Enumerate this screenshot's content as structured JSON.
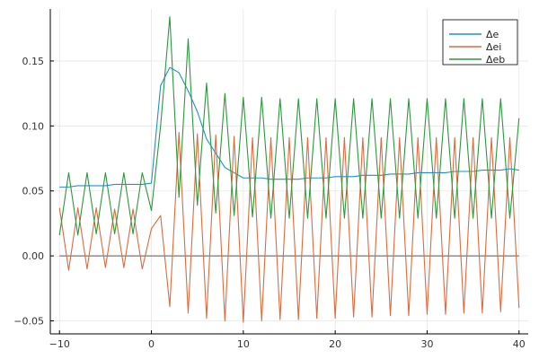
{
  "chart_data": {
    "type": "line",
    "title": "",
    "xlabel": "",
    "ylabel": "",
    "xlim": [
      -11,
      41
    ],
    "ylim": [
      -0.06,
      0.19
    ],
    "grid": true,
    "legend_position": "top-right",
    "x_ticks": [
      -10,
      0,
      10,
      20,
      30,
      40
    ],
    "x_tick_labels": [
      "−10",
      "0",
      "10",
      "20",
      "30",
      "40"
    ],
    "y_ticks": [
      -0.05,
      0.0,
      0.05,
      0.1,
      0.15
    ],
    "y_tick_labels": [
      "−0.05",
      "0.00",
      "0.05",
      "0.10",
      "0.15"
    ],
    "zero_line": 0,
    "x": [
      -10,
      -9,
      -8,
      -7,
      -6,
      -5,
      -4,
      -3,
      -2,
      -1,
      0,
      1,
      2,
      3,
      4,
      5,
      6,
      7,
      8,
      9,
      10,
      11,
      12,
      13,
      14,
      15,
      16,
      17,
      18,
      19,
      20,
      21,
      22,
      23,
      24,
      25,
      26,
      27,
      28,
      29,
      30,
      31,
      32,
      33,
      34,
      35,
      36,
      37,
      38,
      39,
      40
    ],
    "series": [
      {
        "name": "Δe",
        "color": "#1f8fd8",
        "values": [
          0.053,
          0.053,
          0.054,
          0.054,
          0.054,
          0.054,
          0.055,
          0.055,
          0.055,
          0.055,
          0.056,
          0.131,
          0.145,
          0.141,
          0.127,
          0.111,
          0.09,
          0.079,
          0.068,
          0.064,
          0.06,
          0.06,
          0.06,
          0.059,
          0.059,
          0.059,
          0.059,
          0.06,
          0.06,
          0.06,
          0.061,
          0.061,
          0.061,
          0.062,
          0.062,
          0.062,
          0.063,
          0.063,
          0.063,
          0.064,
          0.064,
          0.064,
          0.064,
          0.065,
          0.065,
          0.065,
          0.066,
          0.066,
          0.066,
          0.067,
          0.066
        ]
      },
      {
        "name": "Δei",
        "color": "#e06a3c",
        "values": [
          0.037,
          -0.011,
          0.037,
          -0.01,
          0.037,
          -0.009,
          0.036,
          -0.009,
          0.036,
          -0.01,
          0.021,
          0.031,
          -0.039,
          0.095,
          -0.044,
          0.094,
          -0.048,
          0.093,
          -0.05,
          0.092,
          -0.051,
          0.091,
          -0.05,
          0.091,
          -0.049,
          0.091,
          -0.049,
          0.091,
          -0.048,
          0.091,
          -0.048,
          0.091,
          -0.047,
          0.091,
          -0.047,
          0.091,
          -0.046,
          0.091,
          -0.046,
          0.091,
          -0.045,
          0.091,
          -0.045,
          0.091,
          -0.044,
          0.091,
          -0.044,
          0.091,
          -0.043,
          0.091,
          -0.04
        ]
      },
      {
        "name": "Δeb",
        "color": "#2a9a3a",
        "values": [
          0.016,
          0.064,
          0.016,
          0.064,
          0.017,
          0.064,
          0.017,
          0.064,
          0.017,
          0.064,
          0.035,
          0.1,
          0.184,
          0.045,
          0.167,
          0.039,
          0.133,
          0.033,
          0.125,
          0.031,
          0.122,
          0.03,
          0.122,
          0.029,
          0.121,
          0.029,
          0.121,
          0.029,
          0.121,
          0.029,
          0.121,
          0.029,
          0.121,
          0.029,
          0.121,
          0.029,
          0.121,
          0.029,
          0.121,
          0.029,
          0.121,
          0.029,
          0.121,
          0.029,
          0.121,
          0.029,
          0.121,
          0.029,
          0.121,
          0.029,
          0.106
        ]
      }
    ]
  }
}
